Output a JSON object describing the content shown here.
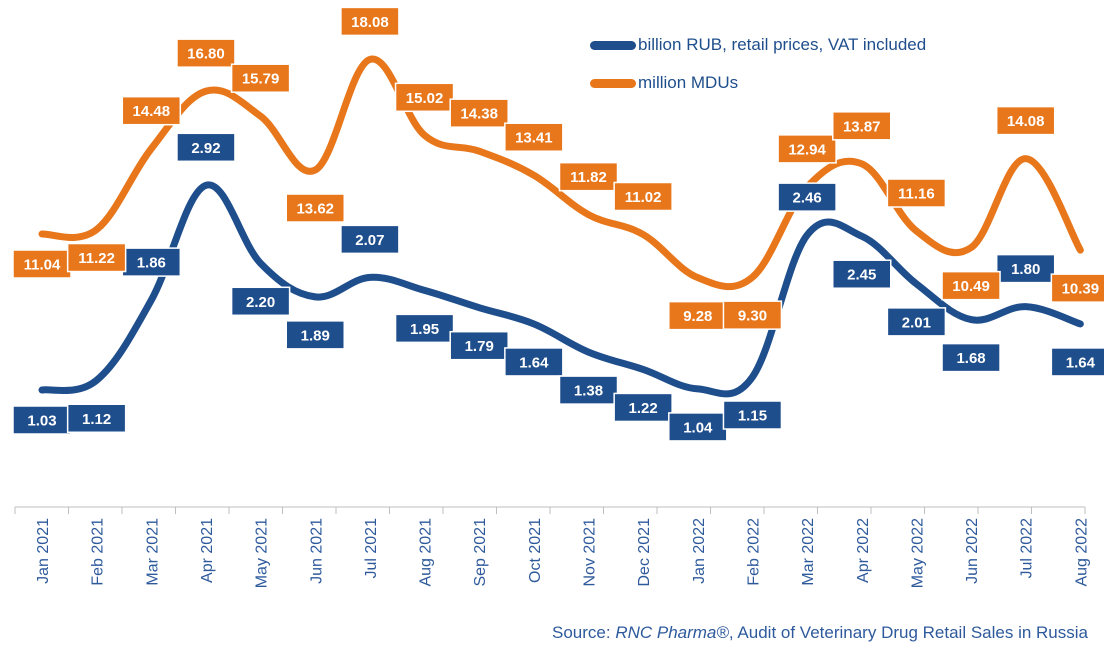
{
  "chart_data": {
    "type": "line",
    "categories": [
      "Jan 2021",
      "Feb 2021",
      "Mar 2021",
      "Apr 2021",
      "May 2021",
      "Jun 2021",
      "Jul 2021",
      "Aug 2021",
      "Sep 2021",
      "Oct 2021",
      "Nov 2021",
      "Dec 2021",
      "Jan 2022",
      "Feb 2022",
      "Mar 2022",
      "Apr 2022",
      "May 2022",
      "Jun 2022",
      "Jul 2022",
      "Aug 2022"
    ],
    "series": [
      {
        "name": "billion RUB, retail prices, VAT included",
        "color": "#1f4e8c",
        "values": [
          1.03,
          1.12,
          1.86,
          2.92,
          2.2,
          1.89,
          2.07,
          1.95,
          1.79,
          1.64,
          1.38,
          1.22,
          1.04,
          1.15,
          2.46,
          2.45,
          2.01,
          1.68,
          1.8,
          1.64
        ],
        "labels": [
          "1.03",
          "1.12",
          "1.86",
          "2.92",
          "2.20",
          "1.89",
          "2.07",
          "1.95",
          "1.79",
          "1.64",
          "1.38",
          "1.22",
          "1.04",
          "1.15",
          "2.46",
          "2.45",
          "2.01",
          "1.68",
          "1.80",
          "1.64"
        ]
      },
      {
        "name": "million MDUs",
        "color": "#e8761b",
        "values": [
          11.04,
          11.22,
          14.48,
          16.8,
          15.79,
          13.62,
          18.08,
          15.02,
          14.38,
          13.41,
          11.82,
          11.02,
          9.28,
          9.3,
          12.94,
          13.87,
          11.16,
          10.49,
          14.08,
          10.39
        ],
        "labels": [
          "11.04",
          "11.22",
          "14.48",
          "16.80",
          "15.79",
          "13.62",
          "18.08",
          "15.02",
          "14.38",
          "13.41",
          "11.82",
          "11.02",
          "9.28",
          "9.30",
          "12.94",
          "13.87",
          "11.16",
          "10.49",
          "14.08",
          "10.39"
        ]
      }
    ],
    "legend_position": "top-right",
    "grid": false
  },
  "source": {
    "prefix": "Source: ",
    "brand": "RNC Pharma®",
    "suffix": ", Audit of Veterinary Drug Retail Sales in Russia"
  }
}
